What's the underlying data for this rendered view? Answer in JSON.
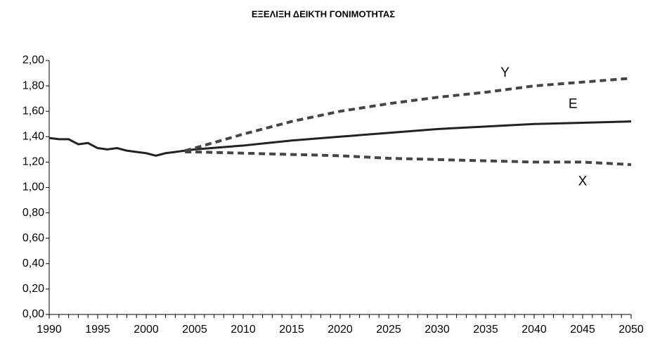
{
  "chart_data": {
    "type": "line",
    "title": "ΕΞΕΛΙΞΗ ΔΕΙΚΤΗ ΓΟΝΙΜΟΤΗΤΑΣ",
    "x": [
      1990,
      1991,
      1992,
      1993,
      1994,
      1995,
      1996,
      1997,
      1998,
      1999,
      2000,
      2001,
      2002,
      2003,
      2004,
      2005,
      2010,
      2015,
      2020,
      2025,
      2030,
      2035,
      2040,
      2045,
      2050
    ],
    "series": [
      {
        "name": "E",
        "color": "#222222",
        "dashed": false,
        "values": [
          1.39,
          1.38,
          1.38,
          1.34,
          1.35,
          1.31,
          1.3,
          1.31,
          1.29,
          1.28,
          1.27,
          1.25,
          1.27,
          1.28,
          1.29,
          1.3,
          1.33,
          1.37,
          1.4,
          1.43,
          1.46,
          1.48,
          1.5,
          1.51,
          1.52
        ]
      },
      {
        "name": "Y",
        "color": "#444444",
        "dashed": true,
        "values": [
          null,
          null,
          null,
          null,
          null,
          null,
          null,
          null,
          null,
          null,
          null,
          null,
          null,
          null,
          1.29,
          1.31,
          1.42,
          1.52,
          1.6,
          1.66,
          1.71,
          1.75,
          1.8,
          1.83,
          1.86
        ]
      },
      {
        "name": "X",
        "color": "#444444",
        "dashed": true,
        "values": [
          null,
          null,
          null,
          null,
          null,
          null,
          null,
          null,
          null,
          null,
          null,
          null,
          null,
          null,
          1.28,
          1.28,
          1.27,
          1.26,
          1.25,
          1.23,
          1.22,
          1.21,
          1.2,
          1.2,
          1.18
        ]
      }
    ],
    "xlim": [
      1990,
      2050
    ],
    "xticks": [
      1990,
      1995,
      2000,
      2005,
      2010,
      2015,
      2020,
      2025,
      2030,
      2035,
      2040,
      2045,
      2050
    ],
    "x_minor_tick_interval": 1,
    "ylim": [
      0,
      2
    ],
    "yticks": [
      {
        "value": 0,
        "label": "0,00"
      },
      {
        "value": 0.2,
        "label": "0,20"
      },
      {
        "value": 0.4,
        "label": "0,40"
      },
      {
        "value": 0.6,
        "label": "0,60"
      },
      {
        "value": 0.8,
        "label": "0,80"
      },
      {
        "value": 1,
        "label": "1,00"
      },
      {
        "value": 1.2,
        "label": "1,20"
      },
      {
        "value": 1.4,
        "label": "1,40"
      },
      {
        "value": 1.6,
        "label": "1,60"
      },
      {
        "value": 1.8,
        "label": "1,80"
      },
      {
        "value": 2,
        "label": "2,00"
      }
    ],
    "grid": false
  }
}
